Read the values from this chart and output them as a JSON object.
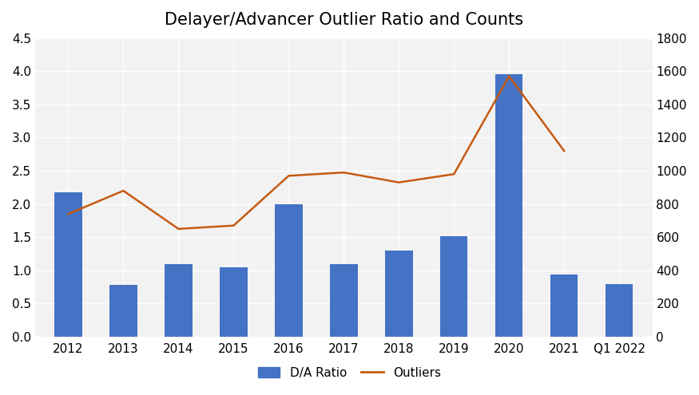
{
  "title": "Delayer/Advancer Outlier Ratio and Counts",
  "categories": [
    "2012",
    "2013",
    "2014",
    "2015",
    "2016",
    "2017",
    "2018",
    "2019",
    "2020",
    "2021",
    "Q1 2022"
  ],
  "da_ratio": [
    2.18,
    0.78,
    1.09,
    1.05,
    2.0,
    1.09,
    1.3,
    1.51,
    3.96,
    0.94,
    0.79
  ],
  "outliers": [
    740,
    880,
    650,
    670,
    970,
    990,
    930,
    980,
    1570,
    1120,
    null
  ],
  "bar_color": "#4472c4",
  "line_color": "#c55a11",
  "plot_bg_color": "#f2f2f2",
  "fig_bg_color": "#ffffff",
  "left_ylim": [
    0,
    4.5
  ],
  "right_ylim": [
    0,
    1800
  ],
  "left_yticks": [
    0.0,
    0.5,
    1.0,
    1.5,
    2.0,
    2.5,
    3.0,
    3.5,
    4.0,
    4.5
  ],
  "right_yticks": [
    0,
    200,
    400,
    600,
    800,
    1000,
    1200,
    1400,
    1600,
    1800
  ],
  "legend_labels": [
    "D/A Ratio",
    "Outliers"
  ],
  "grid_color": "#ffffff",
  "title_fontsize": 15,
  "tick_fontsize": 11
}
